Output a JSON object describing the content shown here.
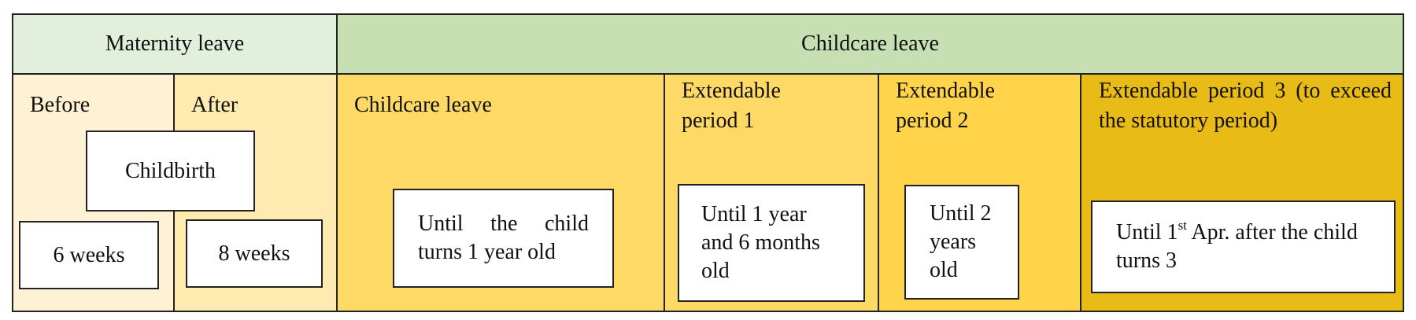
{
  "header": {
    "maternity_leave": "Maternity leave",
    "childcare_leave": "Childcare leave"
  },
  "maternity": {
    "before": "Before",
    "after": "After",
    "childbirth": "Childbirth",
    "before_weeks": "6 weeks",
    "after_weeks": "8 weeks"
  },
  "periods": [
    {
      "title": "Childcare leave",
      "until": "Until the child turns 1 year old"
    },
    {
      "title": "Extendable period 1",
      "until": "Until 1 year and 6 months old"
    },
    {
      "title": "Extendable period 2",
      "until": "Until 2 years old"
    },
    {
      "title": "Extendable period 3 (to exceed the statutory period)",
      "until_parts": [
        "Until 1",
        "st",
        " Apr. after the child turns 3"
      ]
    }
  ]
}
